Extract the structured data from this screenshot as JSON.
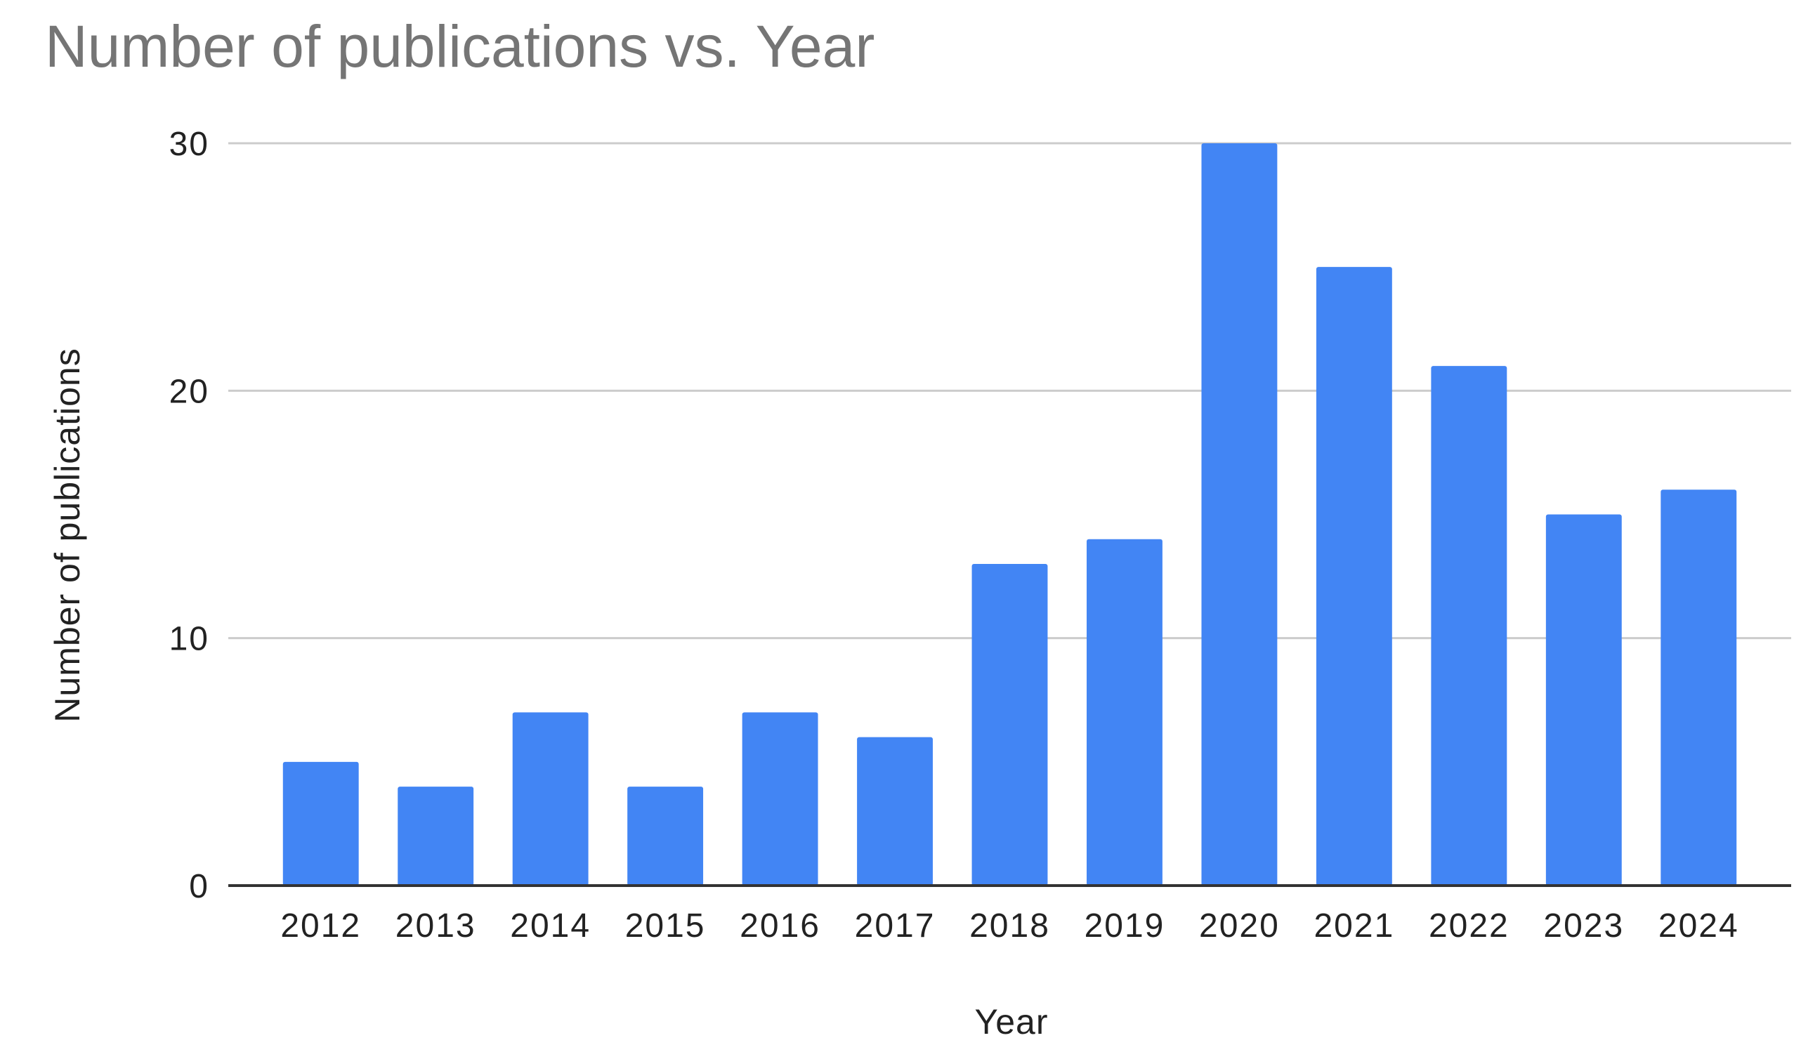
{
  "chart_data": {
    "type": "bar",
    "title": "Number of publications vs. Year",
    "xlabel": "Year",
    "ylabel": "Number of publications",
    "categories": [
      "2012",
      "2013",
      "2014",
      "2015",
      "2016",
      "2017",
      "2018",
      "2019",
      "2020",
      "2021",
      "2022",
      "2023",
      "2024"
    ],
    "values": [
      5,
      4,
      7,
      4,
      7,
      6,
      13,
      14,
      30,
      25,
      21,
      15,
      16
    ],
    "ylim": [
      0,
      30
    ],
    "yticks": [
      0,
      10,
      20,
      30
    ],
    "grid": true,
    "legend": "none",
    "bar_color": "#4285f4",
    "gridline_color": "#cccccc",
    "axis_color": "#333333"
  }
}
